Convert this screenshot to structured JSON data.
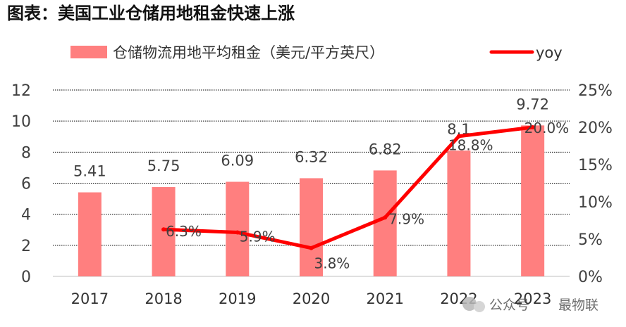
{
  "title": "图表：美国工业仓储用地租金快速上涨",
  "watermark": {
    "channel": "公众号",
    "name": "最物联"
  },
  "chart_data": {
    "type": "bar",
    "categories": [
      "2017",
      "2018",
      "2019",
      "2020",
      "2021",
      "2022",
      "2023"
    ],
    "series": [
      {
        "name": "仓储物流用地平均租金（美元/平方英尺）",
        "type": "bar",
        "axis": "left",
        "values": [
          5.41,
          5.75,
          6.09,
          6.32,
          6.82,
          8.1,
          9.72
        ],
        "labels": [
          "5.41",
          "5.75",
          "6.09",
          "6.32",
          "6.82",
          "8.1",
          "9.72"
        ],
        "color": "#FF7F7F"
      },
      {
        "name": "yoy",
        "type": "line",
        "axis": "right",
        "values": [
          null,
          6.3,
          5.9,
          3.8,
          7.9,
          18.8,
          20.0
        ],
        "labels": [
          null,
          "6.3%",
          "5.9%",
          "3.8%",
          "7.9%",
          "18.8%",
          "20.0%"
        ],
        "color": "#FF0000"
      }
    ],
    "left_axis": {
      "min": 0,
      "max": 12,
      "step": 2,
      "ticks": [
        "0",
        "2",
        "4",
        "6",
        "8",
        "10",
        "12"
      ]
    },
    "right_axis": {
      "min": 0,
      "max": 25,
      "step": 5,
      "ticks": [
        "0%",
        "5%",
        "10%",
        "15%",
        "20%",
        "25%"
      ]
    },
    "grid": true,
    "legend_position": "top"
  }
}
